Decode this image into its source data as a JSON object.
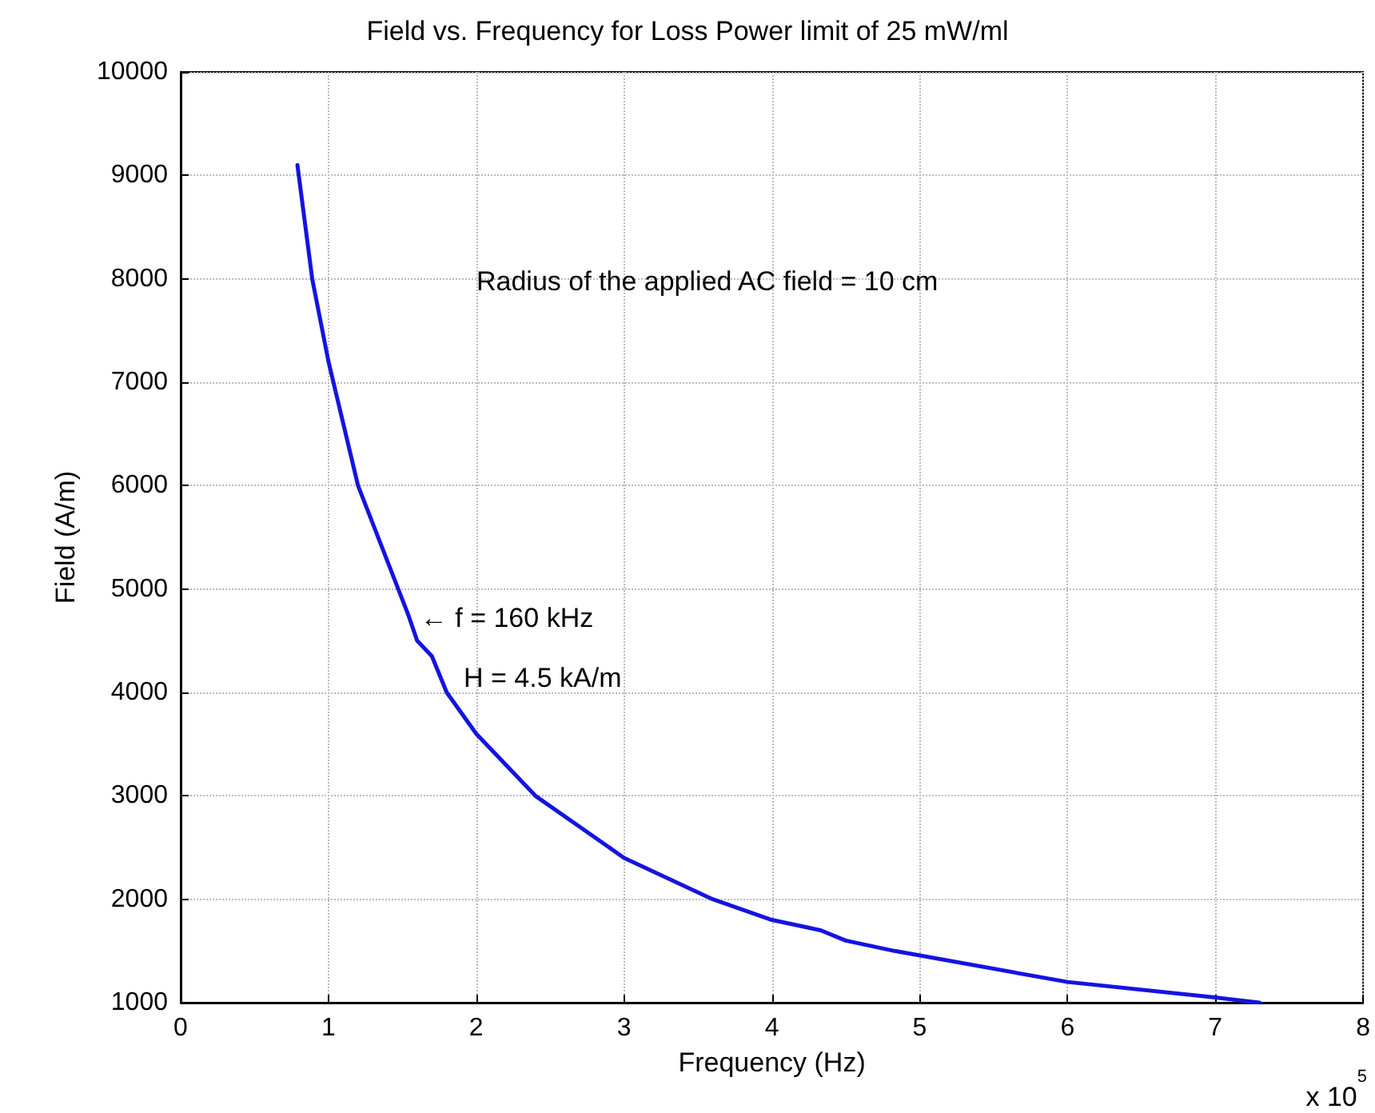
{
  "chart_data": {
    "type": "line",
    "title": "Field vs. Frequency for Loss Power limit of 25 mW/ml",
    "xlabel": "Frequency (Hz)",
    "ylabel": "Field (A/m)",
    "x": [
      0.79,
      0.89,
      1.0,
      1.2,
      1.54,
      1.6,
      1.7,
      1.8,
      2.0,
      2.4,
      3.0,
      3.6,
      4.0,
      4.33,
      4.5,
      4.83,
      6.0,
      7.0,
      7.3
    ],
    "series": [
      {
        "color": "#1414e0",
        "values": [
          9100,
          8000,
          7200,
          6000,
          4750,
          4500,
          4350,
          4000,
          3600,
          3000,
          2400,
          2000,
          1800,
          1700,
          1600,
          1500,
          1200,
          1050,
          1000
        ]
      }
    ],
    "xlim": [
      0,
      8
    ],
    "xticks": [
      0,
      1,
      2,
      3,
      4,
      5,
      6,
      7,
      8
    ],
    "ylim": [
      1000,
      10000
    ],
    "yticks": [
      1000,
      2000,
      3000,
      4000,
      5000,
      6000,
      7000,
      8000,
      9000,
      10000
    ],
    "grid": true,
    "marker": "none",
    "line_style": "solid",
    "annotations": [
      "Radius of the applied AC field = 10 cm",
      {
        "text": "← f = 160 kHz",
        "x": 1.6,
        "y": 4750
      },
      "x 10$^{5}$",
      "H = 4.5 kA/m"
    ]
  }
}
